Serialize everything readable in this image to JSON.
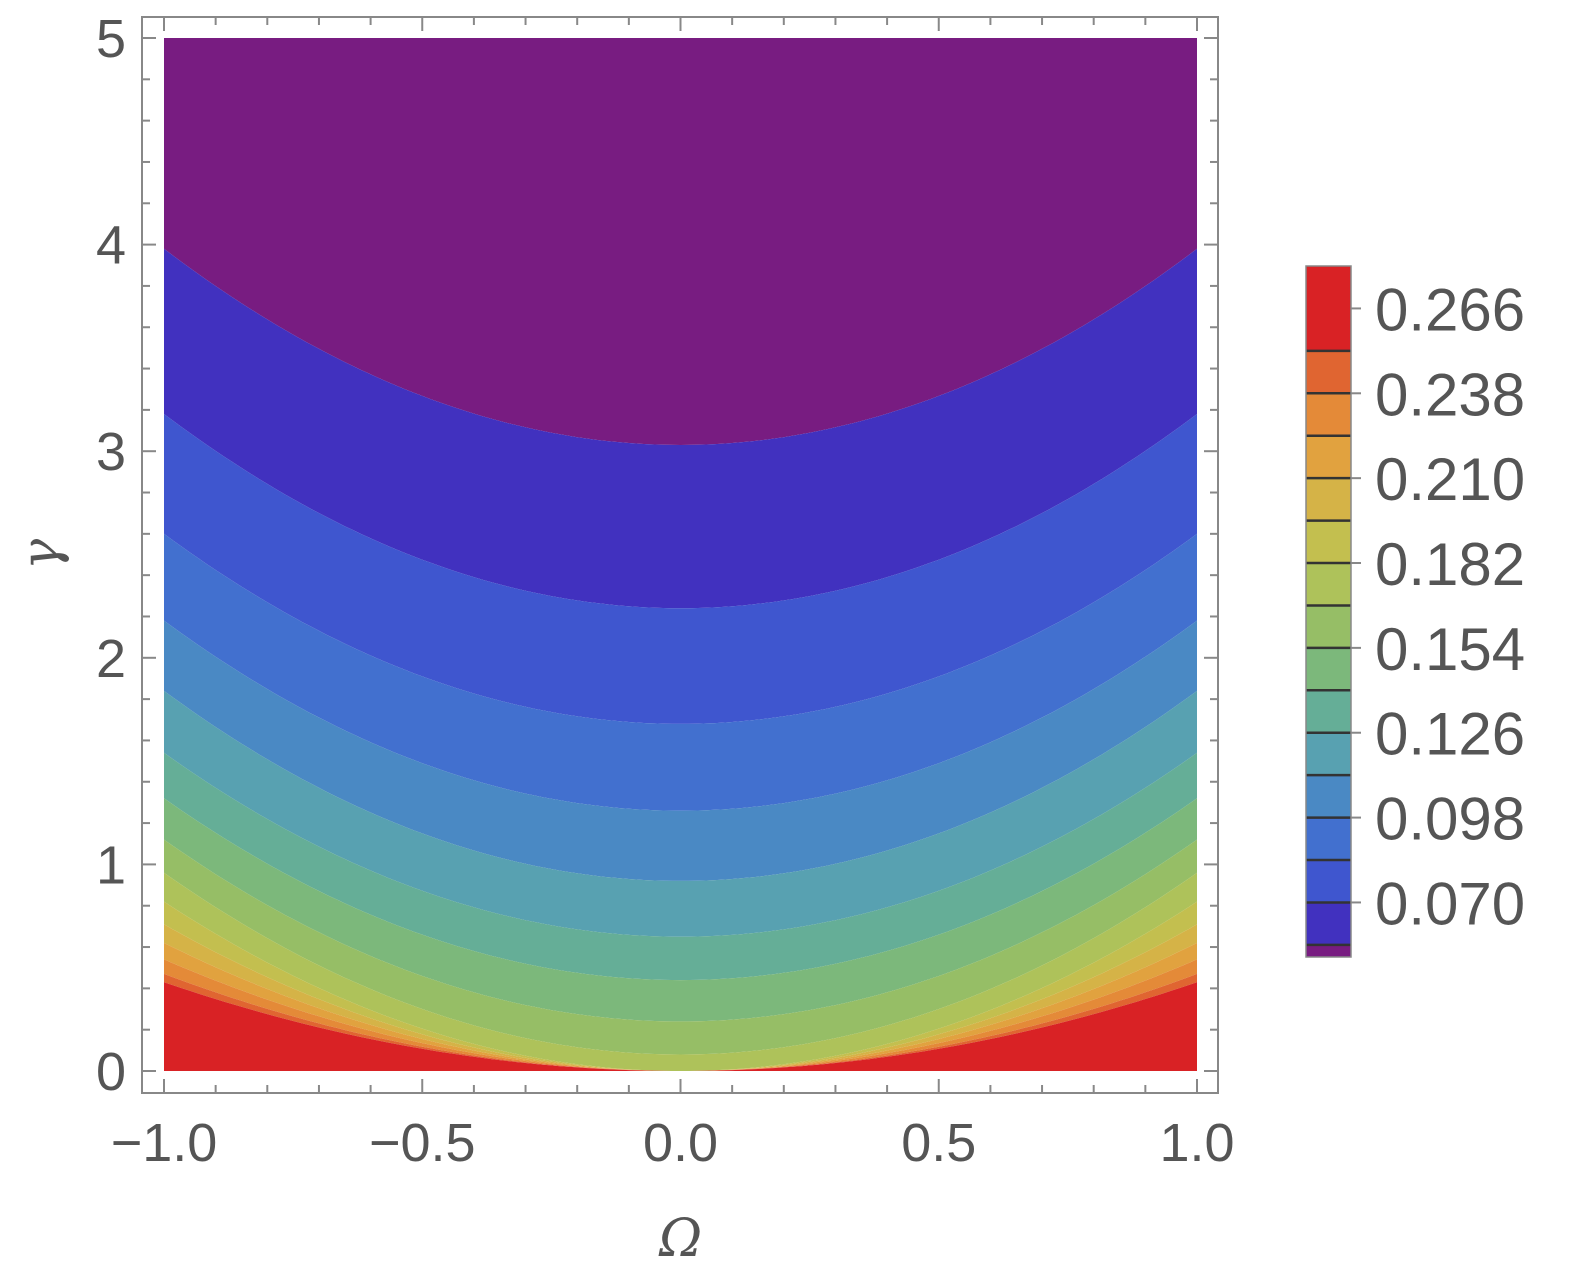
{
  "chart_data": {
    "type": "contour",
    "title": "",
    "xlabel": "Ω",
    "ylabel": "γ",
    "xlim": [
      -1.0,
      1.0
    ],
    "ylim": [
      0,
      5
    ],
    "x_ticks": [
      "−1.0",
      "−0.5",
      "0.0",
      "0.5",
      "1.0"
    ],
    "x_tick_values": [
      -1.0,
      -0.5,
      0.0,
      0.5,
      1.0
    ],
    "y_ticks": [
      "0",
      "1",
      "2",
      "3",
      "4",
      "5"
    ],
    "y_tick_values": [
      0,
      1,
      2,
      3,
      4,
      5
    ],
    "contour_levels": [
      0.056,
      0.07,
      0.084,
      0.098,
      0.112,
      0.126,
      0.14,
      0.154,
      0.168,
      0.182,
      0.196,
      0.21,
      0.224,
      0.238,
      0.252,
      0.266
    ],
    "band_colors": [
      "#781c81",
      "#4131bf",
      "#3f56cf",
      "#4270cf",
      "#4a89c4",
      "#58a1b1",
      "#65ae97",
      "#7cb87b",
      "#96be66",
      "#aec25a",
      "#c3bf4f",
      "#d5b347",
      "#e1a23f",
      "#e48a38",
      "#e06531",
      "#d92225"
    ],
    "colorbar_labels": [
      "0.266",
      "0.238",
      "0.210",
      "0.182",
      "0.154",
      "0.126",
      "0.098",
      "0.070"
    ],
    "colorbar_label_values": [
      0.266,
      0.238,
      0.21,
      0.182,
      0.154,
      0.126,
      0.098,
      0.07
    ],
    "colorbar_range": [
      0.052,
      0.28
    ],
    "contour_y_at_center": [
      3.03,
      2.24,
      1.68,
      1.26,
      0.92,
      0.65,
      0.44,
      0.24,
      0.08,
      0.0,
      0.0,
      0.0,
      0.0,
      0.0,
      0.0
    ],
    "contour_y_at_edge": [
      3.98,
      3.18,
      2.6,
      2.18,
      1.84,
      1.54,
      1.32,
      1.12,
      0.96,
      0.82,
      0.71,
      0.62,
      0.54,
      0.47,
      0.43
    ],
    "grid": false,
    "legend": "colorbar-right"
  }
}
